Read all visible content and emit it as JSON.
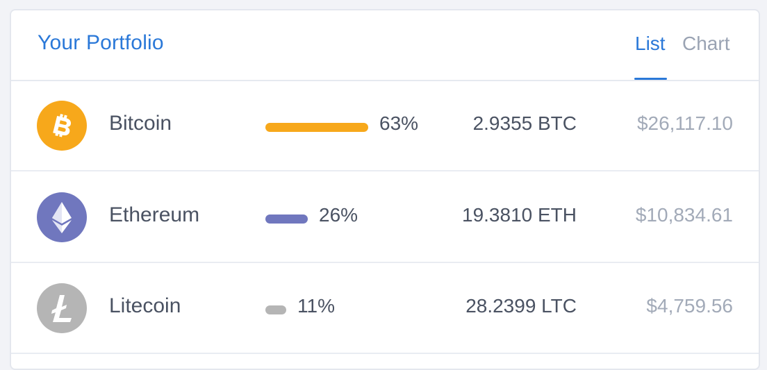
{
  "header": {
    "title": "Your Portfolio",
    "tabs": [
      {
        "label": "List",
        "active": true
      },
      {
        "label": "Chart",
        "active": false
      }
    ]
  },
  "colors": {
    "accent": "#2a78d8",
    "bitcoin": "#f7a81b",
    "ethereum": "#7077be",
    "litecoin": "#b5b5b5"
  },
  "portfolio": [
    {
      "name": "Bitcoin",
      "icon": "bitcoin-icon",
      "percent": "63%",
      "share": 0.63,
      "amount": "2.9355 BTC",
      "value": "$26,117.10"
    },
    {
      "name": "Ethereum",
      "icon": "ethereum-icon",
      "percent": "26%",
      "share": 0.26,
      "amount": "19.3810 ETH",
      "value": "$10,834.61"
    },
    {
      "name": "Litecoin",
      "icon": "litecoin-icon",
      "percent": "11%",
      "share": 0.11,
      "amount": "28.2399 LTC",
      "value": "$4,759.56"
    }
  ]
}
